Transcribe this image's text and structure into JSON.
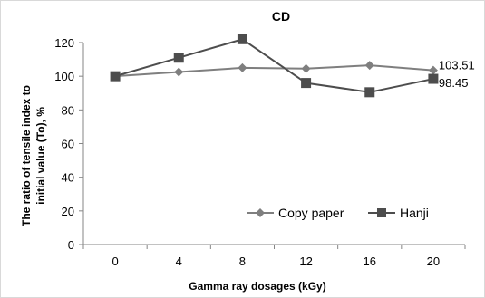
{
  "chart_data": {
    "type": "line",
    "title": "CD",
    "xlabel": "Gamma ray dosages (kGy)",
    "ylabel_line1": "The ratio of tensile index to",
    "ylabel_line2": "initial value (To), %",
    "categories": [
      "0",
      "4",
      "8",
      "12",
      "16",
      "20"
    ],
    "ylim": [
      0,
      120
    ],
    "yticks": [
      "0",
      "20",
      "40",
      "60",
      "80",
      "100",
      "120"
    ],
    "grid": false,
    "legend_position": "bottom-right",
    "series": [
      {
        "name": "Copy paper",
        "marker": "diamond",
        "color": "#7f7f7f",
        "values": [
          100,
          102.5,
          105,
          104.5,
          106.5,
          103.51
        ],
        "end_label": "103.51"
      },
      {
        "name": "Hanji",
        "marker": "square",
        "color": "#4d4d4d",
        "values": [
          100,
          111,
          122,
          96,
          90.5,
          98.45
        ],
        "end_label": "98.45"
      }
    ]
  }
}
